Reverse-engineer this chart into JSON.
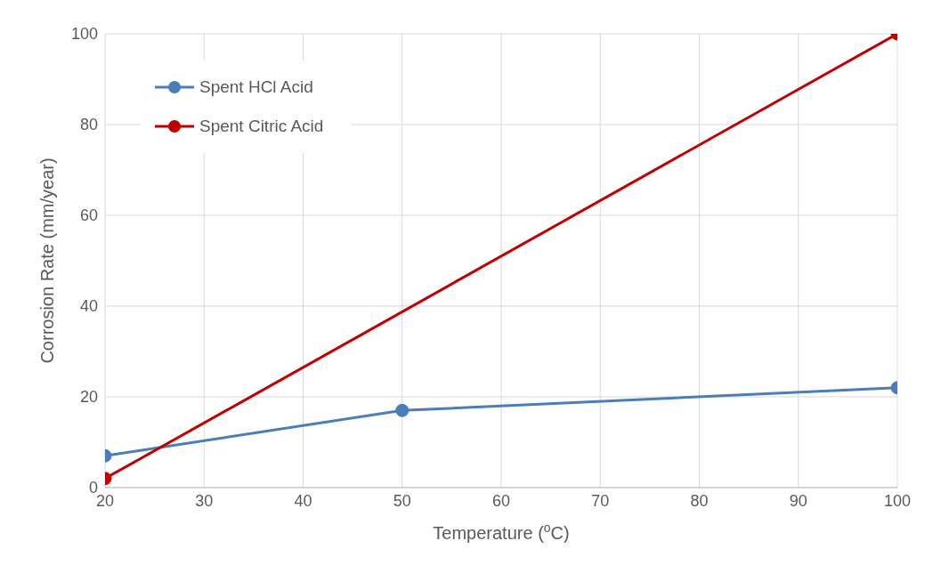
{
  "chart_data": {
    "type": "line",
    "xlabel": "Temperature ($^{o}$C)",
    "ylabel": "Corrosion Rate (mm/year)",
    "series": [
      {
        "name": "Spent HCl Acid",
        "color": "#4a7ebb",
        "x": [
          20,
          50,
          100
        ],
        "values": [
          7,
          17,
          22
        ]
      },
      {
        "name": "Spent Citric Acid",
        "color": "#c00000",
        "x": [
          20,
          100
        ],
        "values": [
          2,
          100
        ]
      }
    ],
    "xlim": [
      20,
      100
    ],
    "xticks": [
      20,
      30,
      40,
      50,
      60,
      70,
      80,
      90,
      100
    ],
    "ylim": [
      0,
      100
    ],
    "yticks": [
      0,
      20,
      40,
      60,
      80,
      100
    ],
    "grid": true,
    "legend": "top left",
    "marker": "circle",
    "line_style": "solid"
  }
}
